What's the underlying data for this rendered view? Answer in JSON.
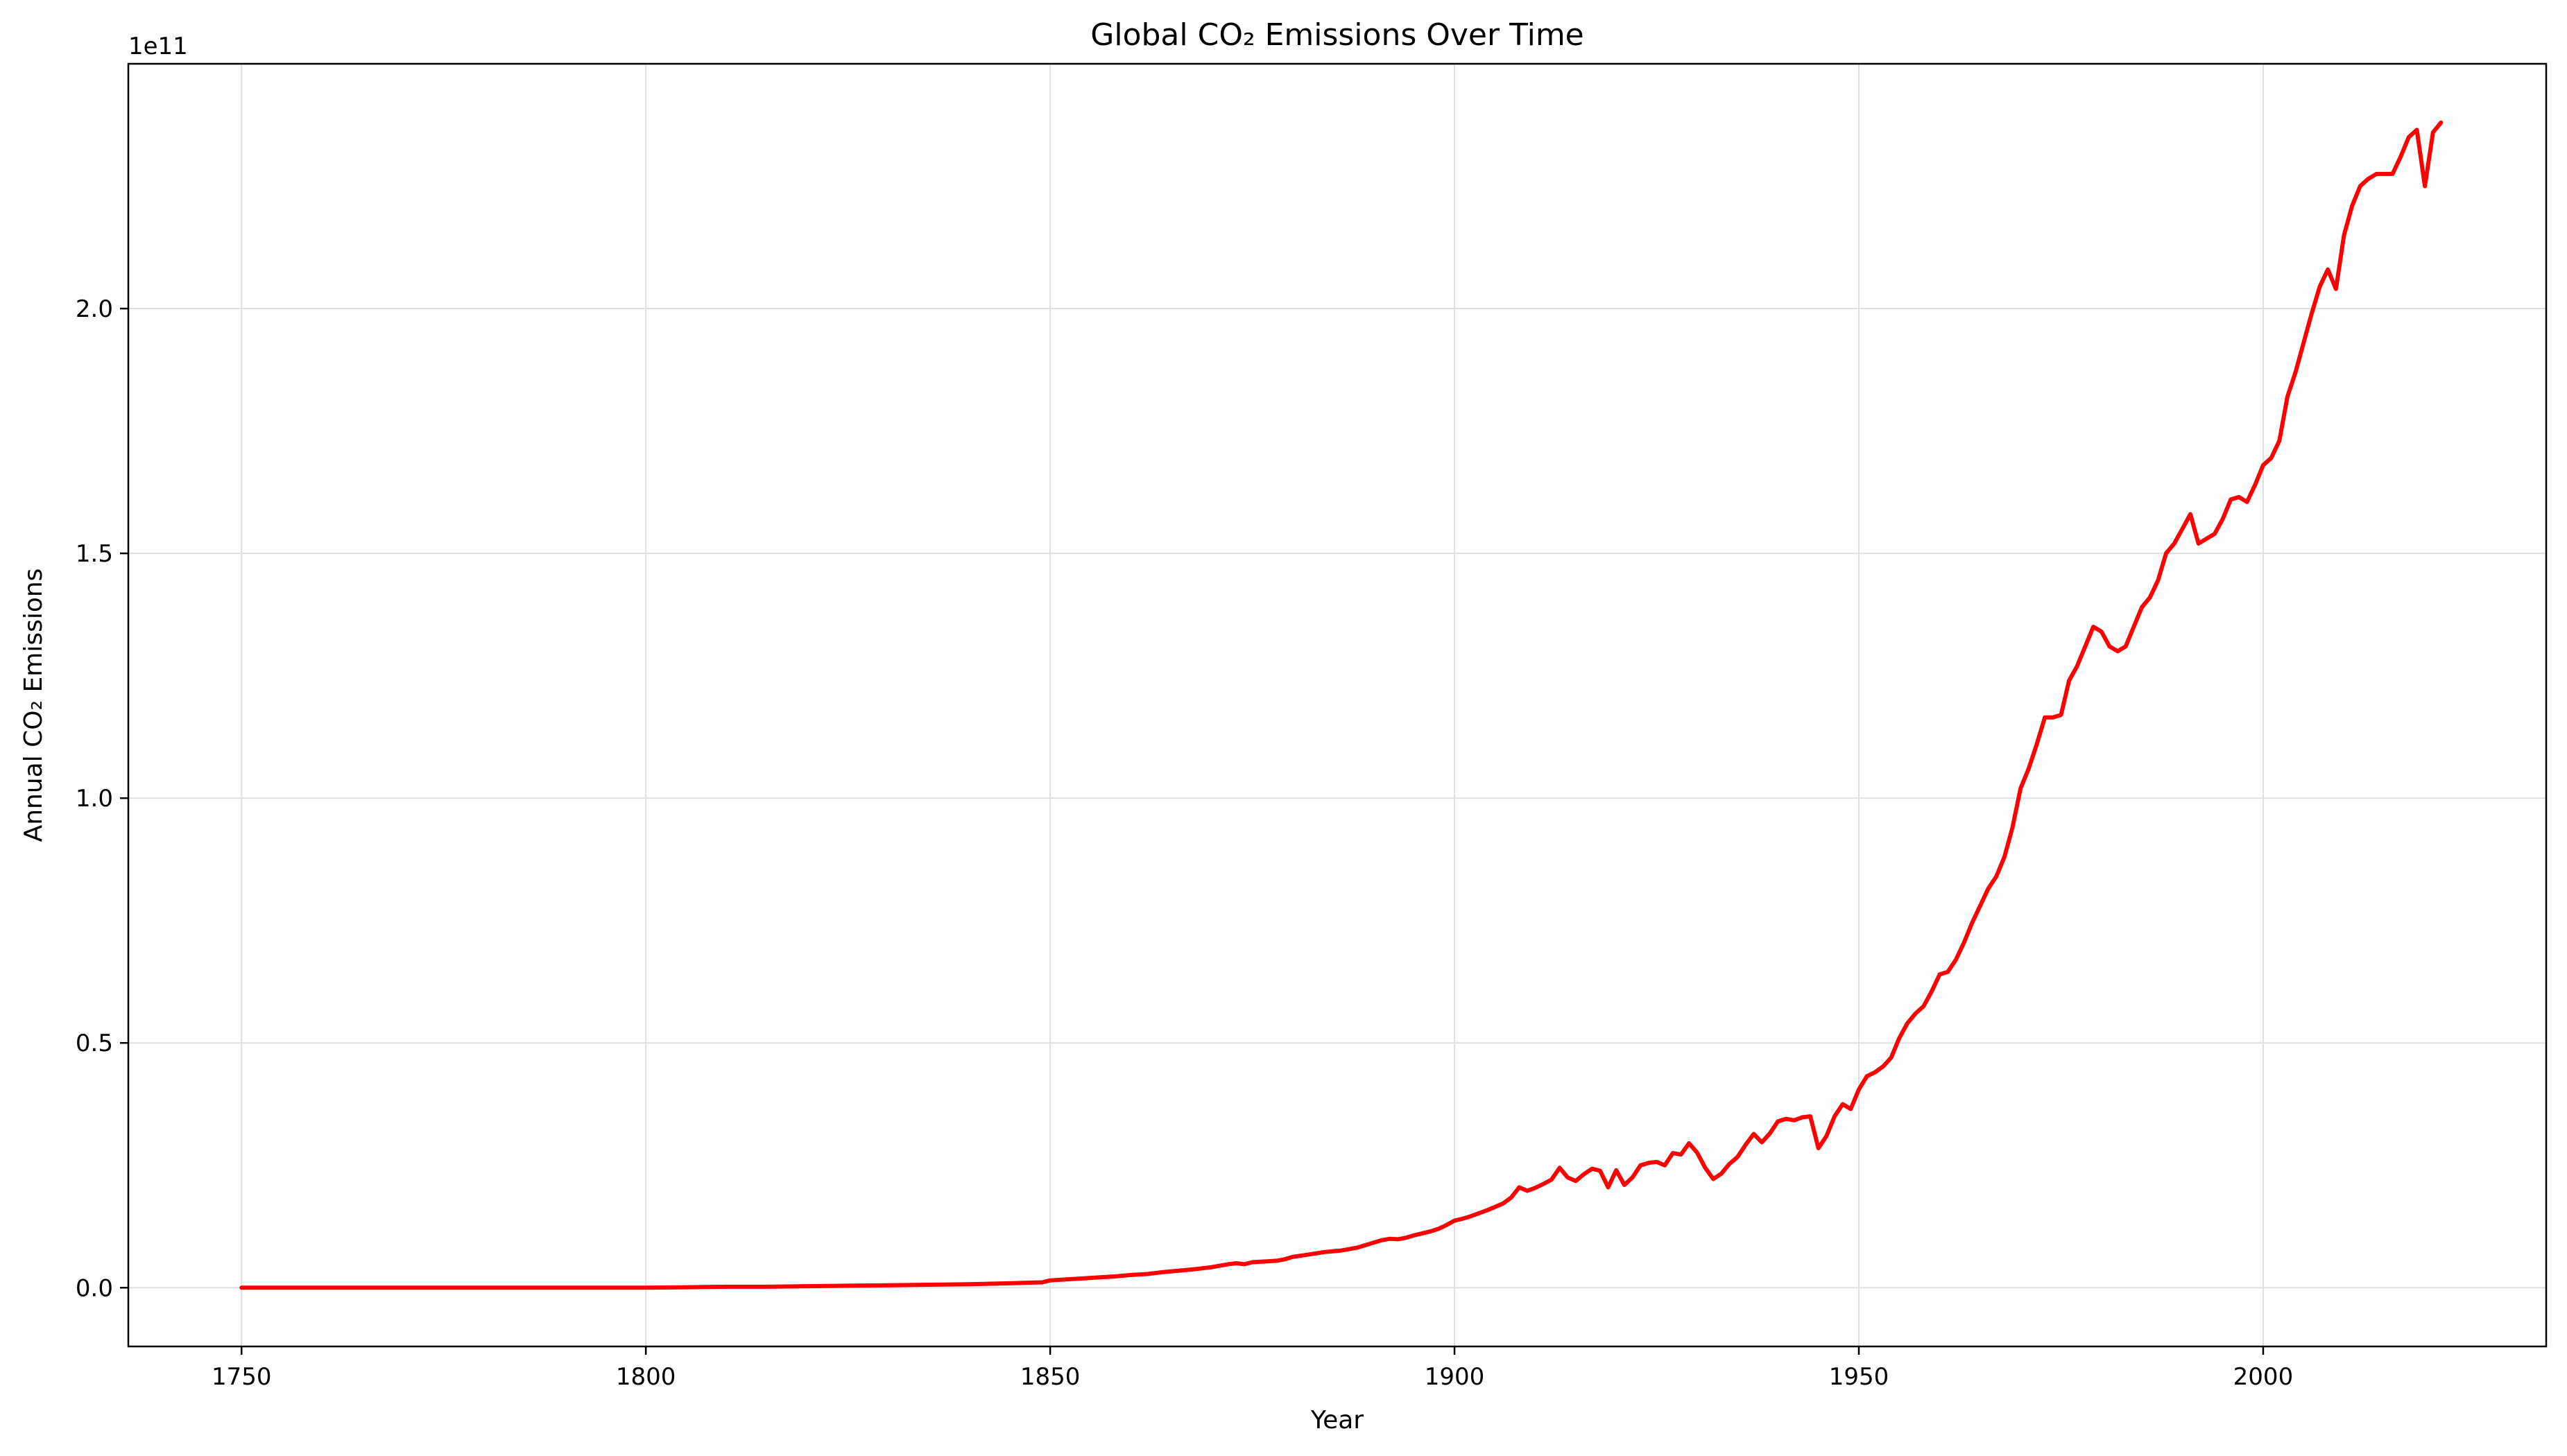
{
  "chart_data": {
    "type": "line",
    "title": "Global CO₂ Emissions Over Time",
    "xlabel": "Year",
    "ylabel": "Annual CO₂ Emissions",
    "offset_label": "1e11",
    "xlim": [
      1736,
      2035
    ],
    "ylim": [
      -0.12,
      2.5
    ],
    "y_scale_exponent": 11,
    "xticks": [
      1750,
      1800,
      1850,
      1900,
      1950,
      2000
    ],
    "yticks": [
      0.0,
      0.5,
      1.0,
      1.5,
      2.0
    ],
    "ytick_labels": [
      "0.0",
      "0.5",
      "1.0",
      "1.5",
      "2.0"
    ],
    "grid": true,
    "series": [
      {
        "color": "#ff0000",
        "x": [
          1750,
          1760,
          1770,
          1780,
          1790,
          1800,
          1805,
          1810,
          1815,
          1820,
          1825,
          1830,
          1835,
          1840,
          1845,
          1849,
          1850,
          1852,
          1854,
          1856,
          1858,
          1860,
          1862,
          1864,
          1866,
          1868,
          1870,
          1872,
          1873,
          1874,
          1875,
          1876,
          1877,
          1878,
          1879,
          1880,
          1882,
          1884,
          1886,
          1888,
          1890,
          1891,
          1892,
          1893,
          1894,
          1895,
          1896,
          1897,
          1898,
          1899,
          1900,
          1901,
          1902,
          1903,
          1904,
          1905,
          1906,
          1907,
          1908,
          1909,
          1910,
          1911,
          1912,
          1913,
          1914,
          1915,
          1916,
          1917,
          1918,
          1919,
          1920,
          1921,
          1922,
          1923,
          1924,
          1925,
          1926,
          1927,
          1928,
          1929,
          1930,
          1931,
          1932,
          1933,
          1934,
          1935,
          1936,
          1937,
          1938,
          1939,
          1940,
          1941,
          1942,
          1943,
          1944,
          1945,
          1946,
          1947,
          1948,
          1949,
          1950,
          1951,
          1952,
          1953,
          1954,
          1955,
          1956,
          1957,
          1958,
          1959,
          1960,
          1961,
          1962,
          1963,
          1964,
          1965,
          1966,
          1967,
          1968,
          1969,
          1970,
          1971,
          1972,
          1973,
          1974,
          1975,
          1976,
          1977,
          1978,
          1979,
          1980,
          1981,
          1982,
          1983,
          1984,
          1985,
          1986,
          1987,
          1988,
          1989,
          1990,
          1991,
          1992,
          1993,
          1994,
          1995,
          1996,
          1997,
          1998,
          1999,
          2000,
          2001,
          2002,
          2003,
          2004,
          2005,
          2006,
          2007,
          2008,
          2009,
          2010,
          2011,
          2012,
          2013,
          2014,
          2015,
          2016,
          2017,
          2018,
          2019,
          2020,
          2021,
          2022
        ],
        "values": [
          0.0,
          0.0,
          0.0,
          0.0,
          0.0,
          0.0,
          0.001,
          0.002,
          0.002,
          0.003,
          0.004,
          0.005,
          0.006,
          0.007,
          0.009,
          0.011,
          0.015,
          0.017,
          0.019,
          0.021,
          0.023,
          0.026,
          0.028,
          0.032,
          0.035,
          0.038,
          0.042,
          0.048,
          0.05,
          0.048,
          0.052,
          0.053,
          0.054,
          0.055,
          0.058,
          0.063,
          0.068,
          0.073,
          0.076,
          0.082,
          0.092,
          0.097,
          0.1,
          0.099,
          0.102,
          0.107,
          0.111,
          0.115,
          0.12,
          0.128,
          0.137,
          0.141,
          0.146,
          0.152,
          0.158,
          0.165,
          0.172,
          0.184,
          0.205,
          0.198,
          0.204,
          0.212,
          0.221,
          0.245,
          0.225,
          0.218,
          0.232,
          0.243,
          0.239,
          0.205,
          0.24,
          0.21,
          0.225,
          0.25,
          0.255,
          0.257,
          0.25,
          0.275,
          0.272,
          0.295,
          0.276,
          0.245,
          0.222,
          0.233,
          0.253,
          0.267,
          0.292,
          0.314,
          0.297,
          0.315,
          0.34,
          0.345,
          0.342,
          0.348,
          0.35,
          0.285,
          0.31,
          0.35,
          0.375,
          0.365,
          0.405,
          0.432,
          0.44,
          0.452,
          0.47,
          0.51,
          0.54,
          0.56,
          0.575,
          0.605,
          0.64,
          0.645,
          0.67,
          0.705,
          0.745,
          0.78,
          0.815,
          0.84,
          0.88,
          0.94,
          1.02,
          1.06,
          1.11,
          1.165,
          1.165,
          1.17,
          1.24,
          1.27,
          1.31,
          1.35,
          1.34,
          1.31,
          1.3,
          1.31,
          1.35,
          1.39,
          1.41,
          1.445,
          1.5,
          1.52,
          1.55,
          1.58,
          1.52,
          1.53,
          1.54,
          1.57,
          1.61,
          1.615,
          1.605,
          1.64,
          1.68,
          1.695,
          1.73,
          1.82,
          1.87,
          1.93,
          1.99,
          2.045,
          2.08,
          2.04,
          2.15,
          2.21,
          2.25,
          2.265,
          2.275,
          2.275,
          2.275,
          2.31,
          2.35,
          2.365,
          2.25,
          2.36,
          2.38
        ]
      }
    ]
  }
}
